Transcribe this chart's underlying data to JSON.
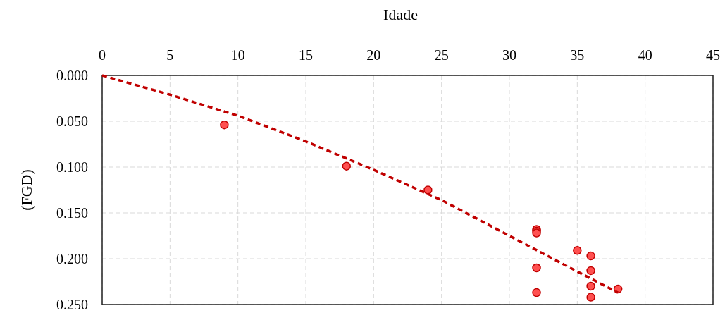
{
  "chart_data": {
    "type": "scatter",
    "xlabel": "Idade",
    "ylabel": "(FGD)",
    "xlim": [
      0,
      45
    ],
    "xticks": [
      0,
      5,
      10,
      15,
      20,
      25,
      30,
      35,
      40,
      45
    ],
    "ylim": [
      0.25,
      0
    ],
    "yticks": [
      {
        "value": 0,
        "label": "0.000"
      },
      {
        "value": 0.05,
        "label": "0.050"
      },
      {
        "value": 0.1,
        "label": "0.100"
      },
      {
        "value": 0.15,
        "label": "0.150"
      },
      {
        "value": 0.2,
        "label": "0.200"
      },
      {
        "value": 0.25,
        "label": "0.250"
      }
    ],
    "grid": true,
    "series": [
      {
        "color": "#ff5050",
        "marker": "circle",
        "x": [
          9,
          18,
          24,
          32,
          32,
          32,
          32,
          32,
          35,
          36,
          36,
          36,
          36,
          38
        ],
        "values": [
          0.054,
          0.099,
          0.125,
          0.168,
          0.17,
          0.172,
          0.21,
          0.237,
          0.191,
          0.197,
          0.213,
          0.23,
          0.242,
          0.233
        ]
      },
      {
        "type": "line",
        "color": "#c00000",
        "line_style": "dashed",
        "x": [
          0,
          5,
          10,
          15,
          20,
          25,
          30,
          35,
          38
        ],
        "values": [
          0,
          0.021,
          0.044,
          0.072,
          0.103,
          0.136,
          0.175,
          0.214,
          0.237
        ]
      }
    ]
  }
}
